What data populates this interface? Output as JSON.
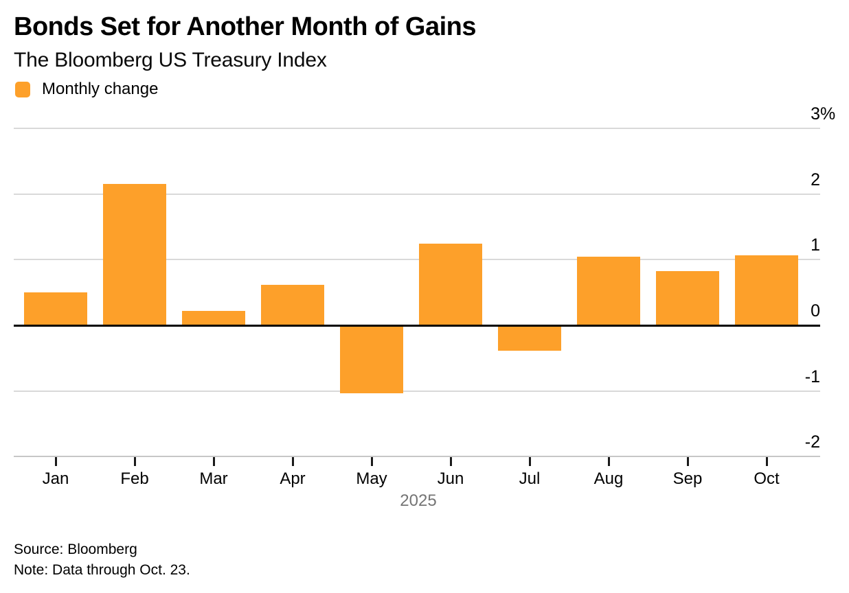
{
  "chart_data": {
    "type": "bar",
    "title": "Bonds Set for Another Month of Gains",
    "subtitle": "The Bloomberg US Treasury Index",
    "legend_label": "Monthly change",
    "legend_position": "top-left",
    "categories": [
      "Jan",
      "Feb",
      "Mar",
      "Apr",
      "May",
      "Jun",
      "Jul",
      "Aug",
      "Sep",
      "Oct"
    ],
    "values": [
      0.5,
      2.15,
      0.22,
      0.62,
      -1.03,
      1.24,
      -0.39,
      1.05,
      0.83,
      1.07
    ],
    "series_name": "Monthly change",
    "xlabel": "2025",
    "ylabel": "",
    "ylim": [
      -2,
      3.2
    ],
    "grid": true,
    "y_ticks": [
      {
        "value": 3,
        "label": "3",
        "suffix": "%"
      },
      {
        "value": 2,
        "label": "2",
        "suffix": ""
      },
      {
        "value": 1,
        "label": "1",
        "suffix": ""
      },
      {
        "value": 0,
        "label": "0",
        "suffix": ""
      },
      {
        "value": -1,
        "label": "-1",
        "suffix": ""
      },
      {
        "value": -2,
        "label": "-2",
        "suffix": ""
      }
    ],
    "bar_color": "#FDA02A",
    "zero_line_color": "#000000",
    "gridline_color": "#d9d9d9",
    "year_label_color": "#747474"
  },
  "footer": {
    "source": "Source: Bloomberg",
    "note": "Note: Data through Oct. 23."
  }
}
